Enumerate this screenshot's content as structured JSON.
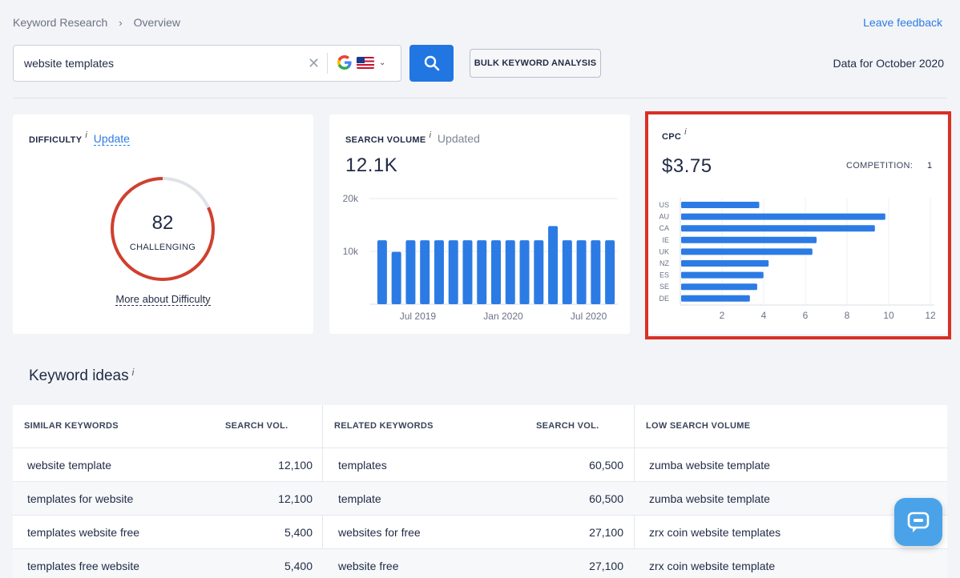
{
  "breadcrumb": {
    "root": "Keyword Research",
    "separator": "›",
    "current": "Overview"
  },
  "header": {
    "feedback_label": "Leave feedback",
    "data_for": "Data for October 2020"
  },
  "search": {
    "query": "website templates",
    "clear_icon": "close-icon",
    "engine_icon": "google-icon",
    "country_icon": "us-flag-icon",
    "search_icon": "search-icon",
    "bulk_label": "BULK KEYWORD ANALYSIS"
  },
  "difficulty": {
    "title": "DIFFICULTY",
    "info": "i",
    "update_label": "Update",
    "value": "82",
    "level": "CHALLENGING",
    "fraction": 0.82,
    "more_label": "More about Difficulty",
    "color": "#d0402e"
  },
  "volume": {
    "title": "SEARCH VOLUME",
    "info": "i",
    "status": "Updated",
    "value": "12.1K",
    "chart_data": {
      "type": "bar",
      "yticks": [
        "20k",
        "10k"
      ],
      "ylim": [
        0,
        20000
      ],
      "xticks": [
        "Jul 2019",
        "Jan 2020",
        "Jul 2020"
      ],
      "values": [
        12100,
        9900,
        12100,
        12100,
        12100,
        12100,
        12100,
        12100,
        12100,
        12100,
        12100,
        12100,
        14800,
        12100,
        12100,
        12100,
        12100
      ],
      "color": "#2c7be5"
    }
  },
  "cpc": {
    "title": "CPC",
    "info": "i",
    "value": "$3.75",
    "competition_label": "COMPETITION:",
    "competition_value": "1",
    "chart_data": {
      "type": "bar",
      "orientation": "horizontal",
      "categories": [
        "US",
        "AU",
        "CA",
        "IE",
        "UK",
        "NZ",
        "ES",
        "SE",
        "DE"
      ],
      "values": [
        3.75,
        9.8,
        9.3,
        6.5,
        6.3,
        4.2,
        3.95,
        3.65,
        3.3
      ],
      "xticks": [
        "2",
        "4",
        "6",
        "8",
        "10",
        "12"
      ],
      "xlim": [
        0,
        12
      ],
      "color": "#2c7be5"
    }
  },
  "ideas": {
    "title": "Keyword ideas",
    "info": "i",
    "columns": {
      "similar": "SIMILAR KEYWORDS",
      "similar_vol": "SEARCH VOL.",
      "related": "RELATED KEYWORDS",
      "related_vol": "SEARCH VOL.",
      "low": "LOW SEARCH VOLUME"
    },
    "rows": [
      {
        "similar": "website template",
        "similar_vol": "12,100",
        "related": "templates",
        "related_vol": "60,500",
        "low": "zumba website template"
      },
      {
        "similar": "templates for website",
        "similar_vol": "12,100",
        "related": "template",
        "related_vol": "60,500",
        "low": "zumba website template"
      },
      {
        "similar": "templates website free",
        "similar_vol": "5,400",
        "related": "websites for free",
        "related_vol": "27,100",
        "low": "zrx coin website templates"
      },
      {
        "similar": "templates free website",
        "similar_vol": "5,400",
        "related": "website free",
        "related_vol": "27,100",
        "low": "zrx coin website template"
      }
    ]
  },
  "chat": {
    "icon": "chat-icon"
  }
}
